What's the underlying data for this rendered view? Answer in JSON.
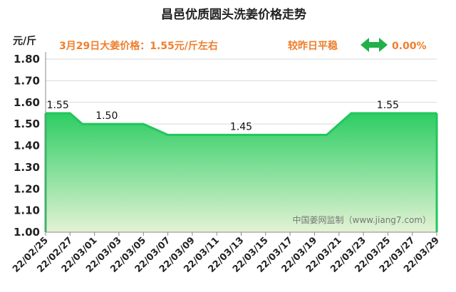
{
  "header": {
    "title": "昌邑优质圆头洗姜价格走势",
    "unit": "元/斤",
    "price_note": "3月29日大姜价格：1.55元/斤左右",
    "trend_note": "较昨日平稳",
    "trend_icon": "double-arrow-horizontal-icon",
    "change_pct": "0.00%"
  },
  "watermark": "中国姜网监制（www.jiang7.com）",
  "colors": {
    "accent_orange": "#ee7f2d",
    "line_green": "#22c55e",
    "fill_top": "#2dcd63",
    "fill_bottom": "#e3f3d5"
  },
  "chart_data": {
    "type": "area",
    "title": "昌邑优质圆头洗姜价格走势",
    "ylabel": "元/斤",
    "xlabel": "",
    "ylim": [
      1.0,
      1.8
    ],
    "yticks": [
      "1.00",
      "1.10",
      "1.20",
      "1.30",
      "1.40",
      "1.50",
      "1.60",
      "1.70",
      "1.80"
    ],
    "x_range": [
      "2022-02-25",
      "2022-03-29"
    ],
    "x_tick_labels": [
      "22/02/25",
      "22/02/27",
      "22/03/01",
      "22/03/03",
      "22/03/05",
      "22/03/07",
      "22/03/09",
      "22/03/11",
      "22/03/13",
      "22/03/15",
      "22/03/17",
      "22/03/19",
      "22/03/21",
      "22/03/23",
      "22/03/25",
      "22/03/27",
      "22/03/29"
    ],
    "points": [
      {
        "date": "2022-02-25",
        "value": 1.55
      },
      {
        "date": "2022-02-27",
        "value": 1.55
      },
      {
        "date": "2022-02-28",
        "value": 1.5
      },
      {
        "date": "2022-03-05",
        "value": 1.5
      },
      {
        "date": "2022-03-07",
        "value": 1.45
      },
      {
        "date": "2022-03-20",
        "value": 1.45
      },
      {
        "date": "2022-03-22",
        "value": 1.55
      },
      {
        "date": "2022-03-29",
        "value": 1.55
      }
    ],
    "data_labels": [
      {
        "date": "2022-02-26",
        "value": 1.55,
        "text": "1.55"
      },
      {
        "date": "2022-03-02",
        "value": 1.5,
        "text": "1.50"
      },
      {
        "date": "2022-03-13",
        "value": 1.45,
        "text": "1.45"
      },
      {
        "date": "2022-03-25",
        "value": 1.55,
        "text": "1.55"
      }
    ],
    "grid": "horizontal",
    "legend": "none"
  }
}
